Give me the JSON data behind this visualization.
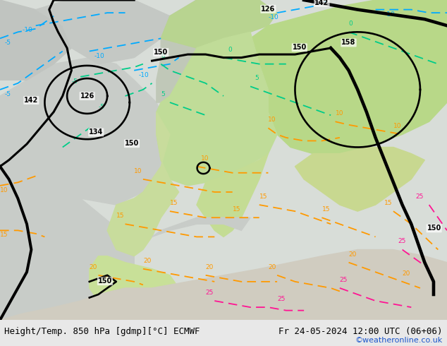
{
  "title_left": "Height/Temp. 850 hPa [gdmp][°C] ECMWF",
  "title_right": "Fr 24-05-2024 12:00 UTC (06+06)",
  "credit": "©weatheronline.co.uk",
  "fig_width": 6.34,
  "fig_height": 4.9,
  "dpi": 100,
  "bg_color": "#d8ddd8",
  "land_green_bright": "#b8d890",
  "land_green_mid": "#c8e0a0",
  "land_grey_cold": "#c8ccc8",
  "land_grey_warm": "#d0d4cc",
  "sea_color": "#d0d4d0",
  "bottom_bar_color": "#e8e8e8",
  "title_color": "#000000",
  "credit_color": "#1a55cc",
  "gc": "#000000",
  "geopot_lw": 2.2,
  "cold_c1": "#00aaff",
  "cold_c2": "#00cc88",
  "warm_c1": "#ff9900",
  "warm_c2": "#ff1493",
  "font_size_title": 9,
  "font_size_credit": 8,
  "font_size_label": 7,
  "font_size_iso": 6.5
}
